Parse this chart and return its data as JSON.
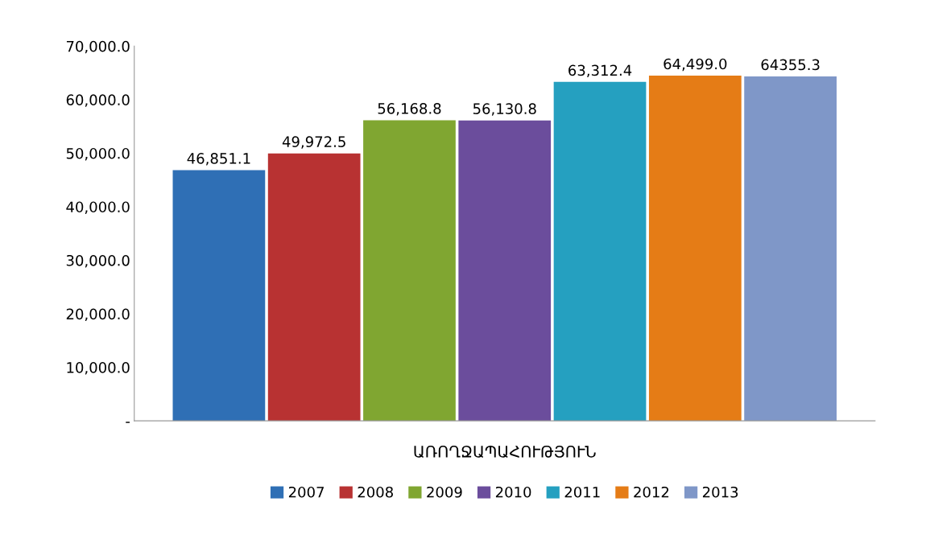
{
  "chart_data": {
    "type": "bar",
    "categories": [
      "ԱՌՈՂՋԱՊԱՀՈՒԹՅՈՒՆ"
    ],
    "series": [
      {
        "name": "2007",
        "color": "#2f6fb5",
        "values": [
          46851.1
        ],
        "value_labels": [
          "46,851.1"
        ]
      },
      {
        "name": "2008",
        "color": "#b83232",
        "values": [
          49972.5
        ],
        "value_labels": [
          "49,972.5"
        ]
      },
      {
        "name": "2009",
        "color": "#80a631",
        "values": [
          56168.8
        ],
        "value_labels": [
          "56,168.8"
        ]
      },
      {
        "name": "2010",
        "color": "#6b4d9c",
        "values": [
          56130.8
        ],
        "value_labels": [
          "56,130.8"
        ]
      },
      {
        "name": "2011",
        "color": "#25a0c0",
        "values": [
          63312.4
        ],
        "value_labels": [
          "63,312.4"
        ]
      },
      {
        "name": "2012",
        "color": "#e57c16",
        "values": [
          64499.0
        ],
        "value_labels": [
          "64,499.0"
        ]
      },
      {
        "name": "2013",
        "color": "#7f97c8",
        "values": [
          64355.3
        ],
        "value_labels": [
          "64355.3"
        ]
      }
    ],
    "ylim": [
      0,
      70000
    ],
    "yticks": [
      {
        "value": 0,
        "label": "-"
      },
      {
        "value": 10000,
        "label": "10,000.0"
      },
      {
        "value": 20000,
        "label": "20,000.0"
      },
      {
        "value": 30000,
        "label": "30,000.0"
      },
      {
        "value": 40000,
        "label": "40,000.0"
      },
      {
        "value": 50000,
        "label": "50,000.0"
      },
      {
        "value": 60000,
        "label": "60,000.0"
      },
      {
        "value": 70000,
        "label": "70,000.0"
      }
    ],
    "grid": false,
    "legend": "bottom"
  }
}
